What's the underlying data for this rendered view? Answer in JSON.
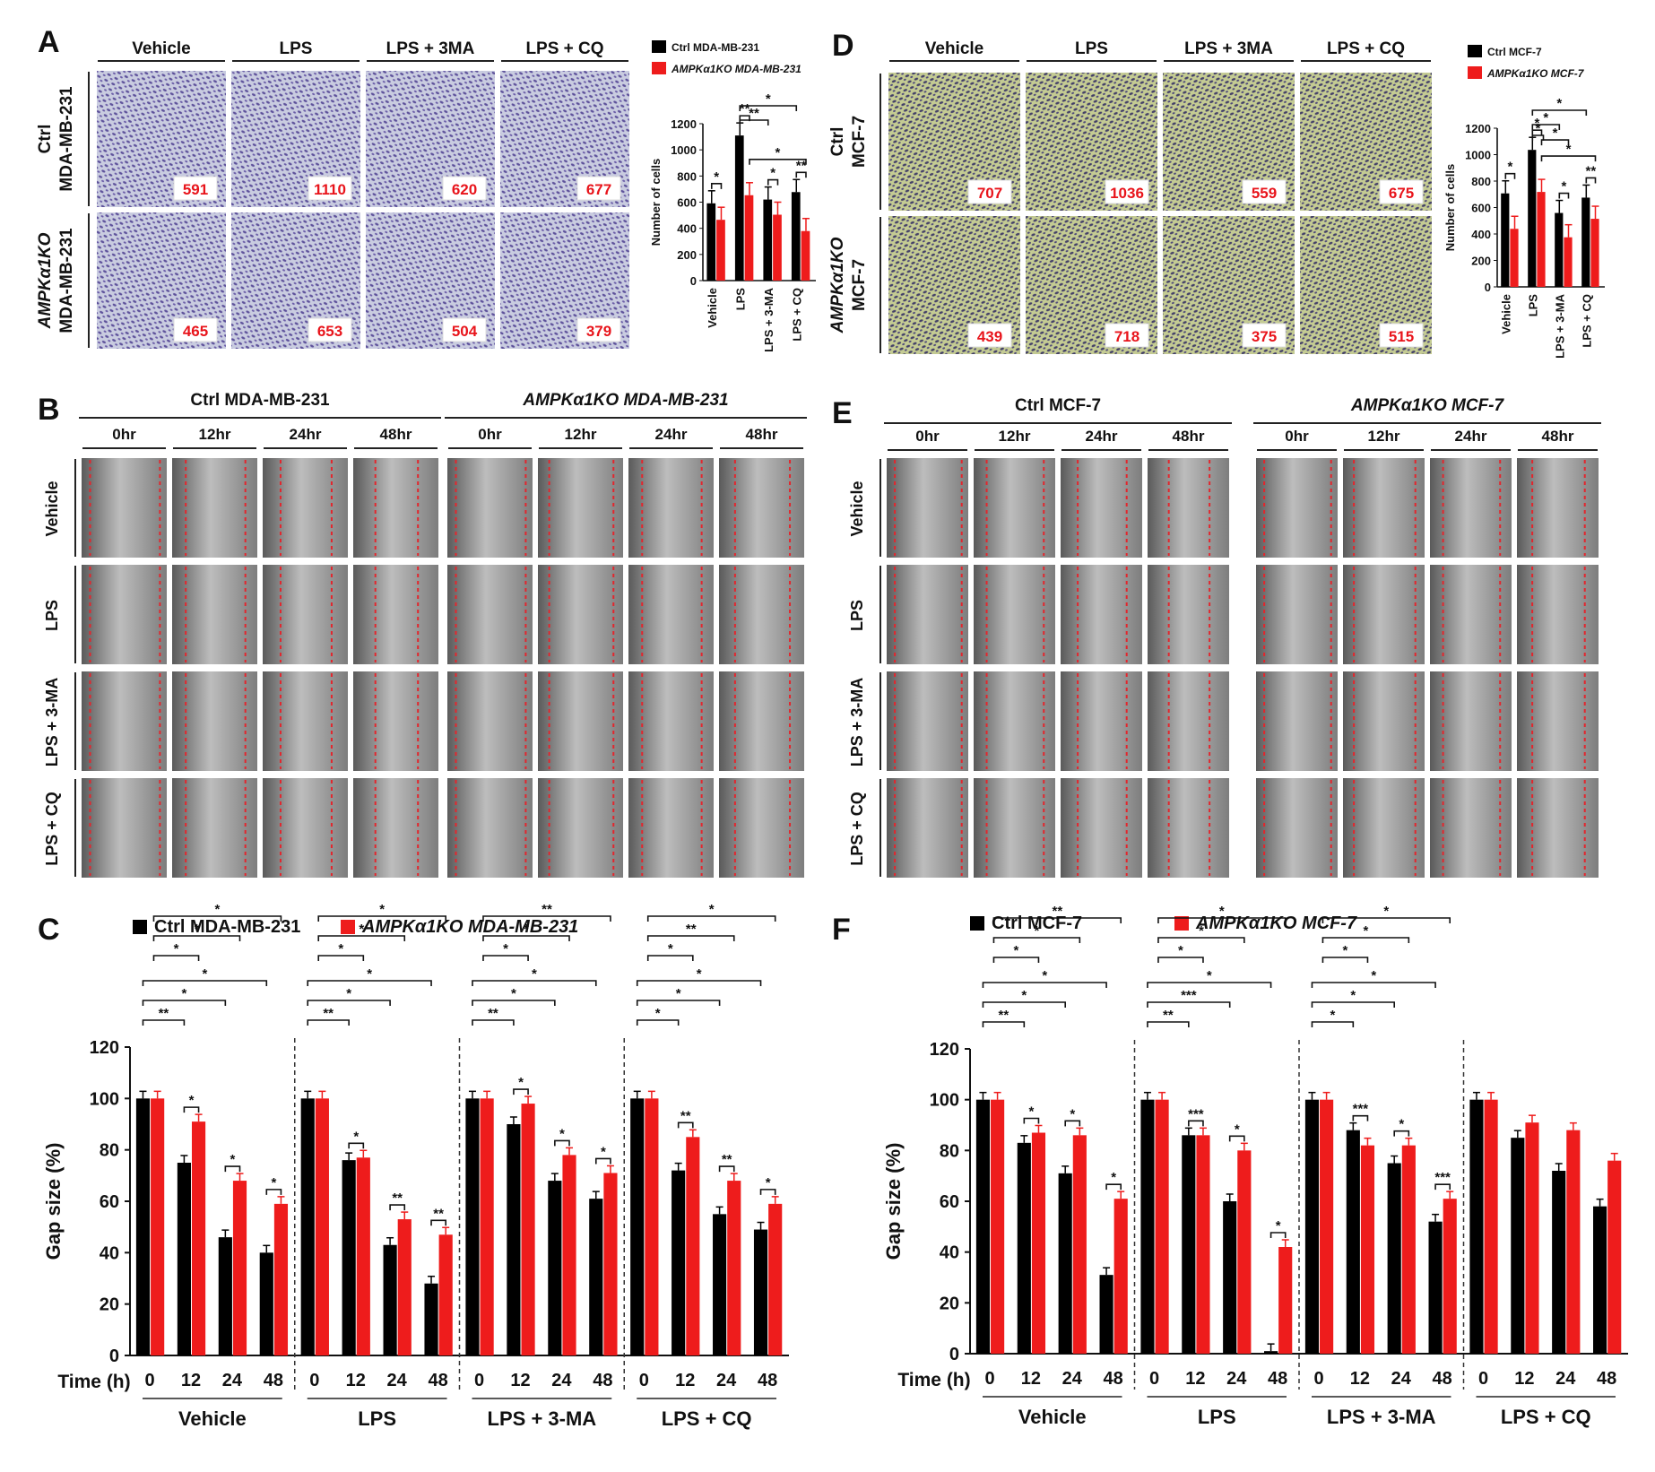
{
  "colors": {
    "ctrl": "#000000",
    "ko": "#ee1c1c",
    "count_text": "#e8141b",
    "dash": "#e3262d"
  },
  "panel_A": {
    "letter": "A",
    "columns": [
      "Vehicle",
      "LPS",
      "LPS + 3MA",
      "LPS + CQ"
    ],
    "rows": [
      {
        "label_line1": "Ctrl",
        "label_line2": "MDA-MB-231",
        "counts": [
          "591",
          "1110",
          "620",
          "677"
        ]
      },
      {
        "label_line1": "AMPKα1KO",
        "label_line2": "MDA-MB-231",
        "counts": [
          "465",
          "653",
          "504",
          "379"
        ]
      }
    ]
  },
  "panel_D": {
    "letter": "D",
    "columns": [
      "Vehicle",
      "LPS",
      "LPS + 3MA",
      "LPS + CQ"
    ],
    "rows": [
      {
        "label_line1": "Ctrl",
        "label_line2": "MCF-7",
        "counts": [
          "707",
          "1036",
          "559",
          "675"
        ]
      },
      {
        "label_line1": "AMPKα1KO",
        "label_line2": "MCF-7",
        "counts": [
          "439",
          "718",
          "375",
          "515"
        ]
      }
    ]
  },
  "panel_B": {
    "letter": "B",
    "group_titles": [
      "Ctrl MDA-MB-231",
      "AMPKα1KO MDA-MB-231"
    ],
    "times": [
      "0hr",
      "12hr",
      "24hr",
      "48hr"
    ],
    "rows": [
      "Vehicle",
      "LPS",
      "LPS + 3-MA",
      "LPS + CQ"
    ]
  },
  "panel_E": {
    "letter": "E",
    "group_titles": [
      "Ctrl MCF-7",
      "AMPKα1KO MCF-7"
    ],
    "times": [
      "0hr",
      "12hr",
      "24hr",
      "48hr"
    ],
    "rows": [
      "Vehicle",
      "LPS",
      "LPS + 3-MA",
      "LPS + CQ"
    ]
  },
  "chart_data": [
    {
      "id": "A_bar",
      "type": "bar",
      "legend": [
        "Ctrl MDA-MB-231",
        "AMPKα1KO MDA-MB-231"
      ],
      "ylabel": "Number of cells",
      "ylim": [
        0,
        1200
      ],
      "yticks": [
        "0",
        "200",
        "400",
        "600",
        "800",
        "1000",
        "1200"
      ],
      "categories": [
        "Vehicle",
        "LPS",
        "LPS + 3-MA",
        "LPS + CQ"
      ],
      "series": [
        {
          "name": "Ctrl MDA-MB-231",
          "values": [
            591,
            1110,
            620,
            677
          ]
        },
        {
          "name": "AMPKα1KO MDA-MB-231",
          "values": [
            465,
            653,
            504,
            379
          ]
        }
      ],
      "significance": [
        "*",
        "**",
        "*",
        "**",
        "**",
        "*",
        "*"
      ]
    },
    {
      "id": "D_bar",
      "type": "bar",
      "legend": [
        "Ctrl MCF-7",
        "AMPKα1KO MCF-7"
      ],
      "ylabel": "Number of cells",
      "ylim": [
        0,
        1200
      ],
      "yticks": [
        "0",
        "200",
        "400",
        "600",
        "800",
        "1000",
        "1200"
      ],
      "categories": [
        "Vehicle",
        "LPS",
        "LPS + 3-MA",
        "LPS + CQ"
      ],
      "series": [
        {
          "name": "Ctrl MCF-7",
          "values": [
            707,
            1036,
            559,
            675
          ]
        },
        {
          "name": "AMPKα1KO MCF-7",
          "values": [
            439,
            718,
            375,
            515
          ]
        }
      ],
      "significance": [
        "*",
        "*",
        "*",
        "**",
        "*",
        "*",
        "*",
        "*",
        "*"
      ]
    },
    {
      "id": "C_bar",
      "type": "bar",
      "letter": "C",
      "legend": [
        "Ctrl MDA-MB-231",
        "AMPKα1KO MDA-MB-231"
      ],
      "ylabel": "Gap size (%)",
      "xlabel": "Time (h)",
      "ylim": [
        0,
        120
      ],
      "yticks": [
        "0",
        "20",
        "40",
        "60",
        "80",
        "100",
        "120"
      ],
      "times": [
        "0",
        "12",
        "24",
        "48"
      ],
      "groups": [
        "Vehicle",
        "LPS",
        "LPS + 3-MA",
        "LPS + CQ"
      ],
      "series": [
        {
          "name": "Ctrl MDA-MB-231",
          "values": [
            [
              100,
              75,
              46,
              40
            ],
            [
              100,
              76,
              43,
              28
            ],
            [
              100,
              90,
              68,
              61
            ],
            [
              100,
              72,
              55,
              49
            ]
          ]
        },
        {
          "name": "AMPKα1KO MDA-MB-231",
          "values": [
            [
              100,
              91,
              68,
              59
            ],
            [
              100,
              77,
              53,
              47
            ],
            [
              100,
              98,
              78,
              71
            ],
            [
              100,
              85,
              68,
              59
            ]
          ]
        }
      ],
      "significance": [
        "*",
        "*",
        "*",
        "**",
        "*",
        "*",
        "*",
        "*",
        "*",
        "*",
        "**",
        "**",
        "**",
        "*",
        "*",
        "*",
        "*",
        "*",
        "*",
        "*",
        "*",
        "**",
        "*",
        "*",
        "*",
        "*",
        "**",
        "**",
        "**",
        "*",
        "*",
        "*",
        "*",
        "*",
        "**",
        "*",
        "*"
      ]
    },
    {
      "id": "F_bar",
      "type": "bar",
      "letter": "F",
      "legend": [
        "Ctrl MCF-7",
        "AMPKα1KO MCF-7"
      ],
      "ylabel": "Gap size (%)",
      "xlabel": "Time (h)",
      "ylim": [
        0,
        120
      ],
      "yticks": [
        "0",
        "20",
        "40",
        "60",
        "80",
        "100",
        "120"
      ],
      "times": [
        "0",
        "12",
        "24",
        "48"
      ],
      "groups": [
        "Vehicle",
        "LPS",
        "LPS + 3-MA",
        "LPS + CQ"
      ],
      "series": [
        {
          "name": "Ctrl MCF-7",
          "values": [
            [
              100,
              83,
              71,
              31
            ],
            [
              100,
              86,
              60,
              1
            ],
            [
              100,
              88,
              75,
              52
            ],
            [
              100,
              85,
              72,
              58
            ]
          ]
        },
        {
          "name": "AMPKα1KO MCF-7",
          "values": [
            [
              100,
              87,
              86,
              61
            ],
            [
              100,
              86,
              80,
              42
            ],
            [
              100,
              82,
              82,
              61
            ],
            [
              100,
              91,
              88,
              76
            ]
          ]
        }
      ],
      "significance": [
        "*",
        "*",
        "*",
        "**",
        "*",
        "*",
        "*",
        "*",
        "**",
        "***",
        "*",
        "*",
        "**",
        "***",
        "*",
        "*",
        "*",
        "*",
        "***",
        "*",
        "***",
        "*",
        "*",
        "*",
        "*",
        "*",
        "*"
      ]
    }
  ]
}
